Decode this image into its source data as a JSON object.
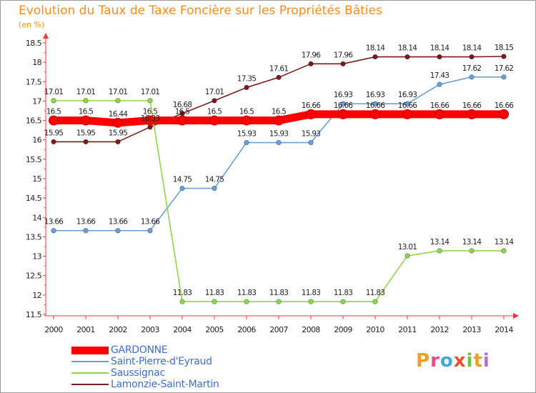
{
  "chart_data": {
    "type": "line",
    "title": "Evolution du Taux de Taxe Foncière sur les Propriétés Bâties",
    "subtitle": "(en %)",
    "xlabel": "",
    "ylabel": "",
    "x": [
      "2000",
      "2001",
      "2002",
      "2003",
      "2004",
      "2005",
      "2006",
      "2007",
      "2008",
      "2009",
      "2010",
      "2011",
      "2012",
      "2013",
      "2014"
    ],
    "ylim": [
      11.5,
      18.5
    ],
    "yticks": [
      "11.5",
      "12",
      "12.5",
      "13",
      "13.5",
      "14",
      "14.5",
      "15",
      "15.5",
      "16",
      "16.5",
      "17",
      "17.5",
      "18",
      "18.5"
    ],
    "grid": false,
    "legend_position": "bottom-left",
    "series": [
      {
        "name": "GARDONNE",
        "color": "#ff0000",
        "values": [
          16.5,
          16.5,
          16.44,
          16.5,
          16.5,
          16.5,
          16.5,
          16.5,
          16.66,
          16.66,
          16.66,
          16.66,
          16.66,
          16.66,
          16.66
        ],
        "labels": [
          "16.5",
          "16.5",
          "16.44",
          "16.5",
          "16.5",
          "16.5",
          "16.5",
          "16.5",
          "16.66",
          "16.66",
          "16.66",
          "16.66",
          "16.66",
          "16.66",
          "16.66"
        ]
      },
      {
        "name": "Saint-Pierre-d'Eyraud",
        "color": "#6b9fd8",
        "values": [
          13.66,
          13.66,
          13.66,
          13.66,
          14.75,
          14.75,
          15.93,
          15.93,
          15.93,
          16.93,
          16.93,
          16.93,
          17.43,
          17.62,
          17.62
        ],
        "labels": [
          "13.66",
          "13.66",
          "13.66",
          "13.66",
          "14.75",
          "14.75",
          "15.93",
          "15.93",
          "15.93",
          "16.93",
          "16.93",
          "16.93",
          "17.43",
          "17.62",
          "17.62"
        ]
      },
      {
        "name": "Saussignac",
        "color": "#8ed64a",
        "values": [
          17.01,
          17.01,
          17.01,
          17.01,
          11.83,
          11.83,
          11.83,
          11.83,
          11.83,
          11.83,
          11.83,
          13.01,
          13.14,
          13.14,
          13.14
        ],
        "labels": [
          "17.01",
          "17.01",
          "17.01",
          "17.01",
          "11.83",
          "11.83",
          "11.83",
          "11.83",
          "11.83",
          "11.83",
          "11.83",
          "13.01",
          "13.14",
          "13.14",
          "13.14"
        ]
      },
      {
        "name": "Lamonzie-Saint-Martin",
        "color": "#7a1a1a",
        "values": [
          15.95,
          15.95,
          15.95,
          16.33,
          16.68,
          17.01,
          17.35,
          17.61,
          17.96,
          17.96,
          18.14,
          18.14,
          18.14,
          18.14,
          18.15
        ],
        "labels": [
          "15.95",
          "15.95",
          "15.95",
          "16.33",
          "16.68",
          "17.01",
          "17.35",
          "17.61",
          "17.96",
          "17.96",
          "18.14",
          "18.14",
          "18.14",
          "18.14",
          "18.15"
        ]
      }
    ]
  },
  "logo": {
    "letters": [
      "P",
      "r",
      "o",
      "x",
      "i",
      "t",
      "i"
    ],
    "colors": [
      "#f0a020",
      "#e84a8a",
      "#40a8e0",
      "#e85030",
      "#70c040",
      "#f0a020",
      "#b070d0"
    ]
  }
}
